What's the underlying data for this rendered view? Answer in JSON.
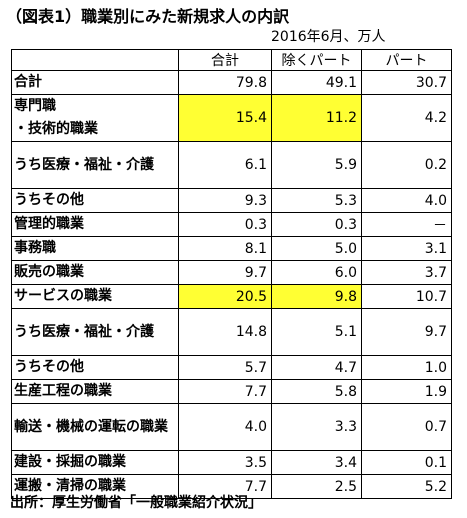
{
  "title": "（図表1）職業別にみた新規求人の内訳",
  "unit_note": "2016年6月、万人",
  "highlight_color": "#ffff33",
  "columns": [
    "",
    "合計",
    "除くパート",
    "パート"
  ],
  "rows": [
    {
      "label": "合計",
      "values": [
        "79.8",
        "49.1",
        "30.7"
      ],
      "highlight": [
        false,
        false,
        false
      ],
      "lines": 1
    },
    {
      "label": "専門職\n・技術的職業",
      "values": [
        "15.4",
        "11.2",
        "4.2"
      ],
      "highlight": [
        true,
        true,
        false
      ],
      "lines": 2
    },
    {
      "label": "うち医療・福祉・介護",
      "values": [
        "6.1",
        "5.9",
        "0.2"
      ],
      "highlight": [
        false,
        false,
        false
      ],
      "lines": 2
    },
    {
      "label": "うちその他",
      "values": [
        "9.3",
        "5.3",
        "4.0"
      ],
      "highlight": [
        false,
        false,
        false
      ],
      "lines": 1
    },
    {
      "label": "管理的職業",
      "values": [
        "0.3",
        "0.3",
        "－"
      ],
      "highlight": [
        false,
        false,
        false
      ],
      "lines": 1
    },
    {
      "label": "事務職",
      "values": [
        "8.1",
        "5.0",
        "3.1"
      ],
      "highlight": [
        false,
        false,
        false
      ],
      "lines": 1
    },
    {
      "label": "販売の職業",
      "values": [
        "9.7",
        "6.0",
        "3.7"
      ],
      "highlight": [
        false,
        false,
        false
      ],
      "lines": 1
    },
    {
      "label": "サービスの職業",
      "values": [
        "20.5",
        "9.8",
        "10.7"
      ],
      "highlight": [
        true,
        true,
        false
      ],
      "lines": 1
    },
    {
      "label": "うち医療・福祉・介護",
      "values": [
        "14.8",
        "5.1",
        "9.7"
      ],
      "highlight": [
        false,
        false,
        false
      ],
      "lines": 2
    },
    {
      "label": "うちその他",
      "values": [
        "5.7",
        "4.7",
        "1.0"
      ],
      "highlight": [
        false,
        false,
        false
      ],
      "lines": 1
    },
    {
      "label": "生産工程の職業",
      "values": [
        "7.7",
        "5.8",
        "1.9"
      ],
      "highlight": [
        false,
        false,
        false
      ],
      "lines": 1
    },
    {
      "label": "輸送・機械の運転の職業",
      "values": [
        "4.0",
        "3.3",
        "0.7"
      ],
      "highlight": [
        false,
        false,
        false
      ],
      "lines": 2
    },
    {
      "label": "建設・採掘の職業",
      "values": [
        "3.5",
        "3.4",
        "0.1"
      ],
      "highlight": [
        false,
        false,
        false
      ],
      "lines": 1
    },
    {
      "label": "運搬・清掃の職業",
      "values": [
        "7.7",
        "2.5",
        "5.2"
      ],
      "highlight": [
        false,
        false,
        false
      ],
      "lines": 1
    }
  ],
  "source": "出所：厚生労働省「一般職業紹介状況」"
}
